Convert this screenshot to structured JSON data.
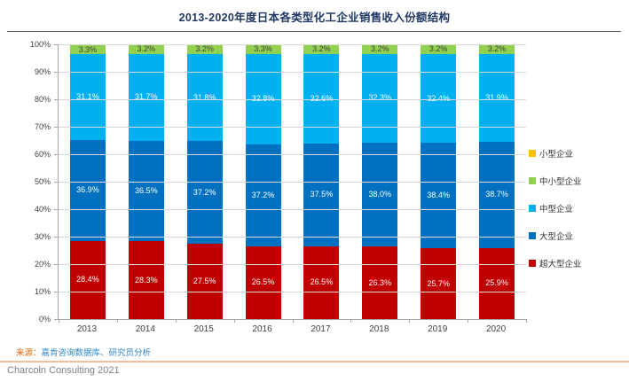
{
  "title": "2013-2020年度日本各类型化工企业销售收入份额结构",
  "chart_data": {
    "type": "bar",
    "stacked": true,
    "title": "2013-2020年度日本各类型化工企业销售收入份额结构",
    "categories": [
      "2013",
      "2014",
      "2015",
      "2016",
      "2017",
      "2018",
      "2019",
      "2020"
    ],
    "series": [
      {
        "name": "超大型企业",
        "color": "#C00000",
        "label_color": "#FFFFFF",
        "show_labels": true,
        "values": [
          28.4,
          28.3,
          27.5,
          26.5,
          26.5,
          26.3,
          25.7,
          25.9
        ]
      },
      {
        "name": "大型企业",
        "color": "#0070C0",
        "label_color": "#FFFFFF",
        "show_labels": true,
        "values": [
          36.9,
          36.5,
          37.2,
          37.2,
          37.5,
          38.0,
          38.4,
          38.7
        ]
      },
      {
        "name": "中型企业",
        "color": "#00B0F0",
        "label_color": "#FFFFFF",
        "show_labels": true,
        "values": [
          31.1,
          31.7,
          31.8,
          32.8,
          32.6,
          32.3,
          32.4,
          31.9
        ]
      },
      {
        "name": "中小型企业",
        "color": "#92D050",
        "label_color": "#404040",
        "show_labels": true,
        "values": [
          3.3,
          3.2,
          3.2,
          3.3,
          3.2,
          3.2,
          3.2,
          3.2
        ]
      },
      {
        "name": "小型企业",
        "color": "#FFC000",
        "label_color": "#404040",
        "show_labels": false,
        "values": [
          0.3,
          0.3,
          0.3,
          0.2,
          0.2,
          0.2,
          0.3,
          0.3
        ]
      }
    ],
    "ylim": [
      0,
      100
    ],
    "y_ticks": [
      "0%",
      "10%",
      "20%",
      "30%",
      "40%",
      "50%",
      "60%",
      "70%",
      "80%",
      "90%",
      "100%"
    ],
    "grid": true,
    "legend_position": "right",
    "legend": [
      {
        "label": "小型企业",
        "color": "#FFC000"
      },
      {
        "label": "中小型企业",
        "color": "#92D050"
      },
      {
        "label": "中型企业",
        "color": "#00B0F0"
      },
      {
        "label": "大型企业",
        "color": "#0070C0"
      },
      {
        "label": "超大型企业",
        "color": "#C00000"
      }
    ]
  },
  "source": {
    "prefix": "来源：",
    "text": "嘉肯咨询数据库、研究员分析"
  },
  "footer": {
    "text": "Charcoln Consulting 2021"
  }
}
